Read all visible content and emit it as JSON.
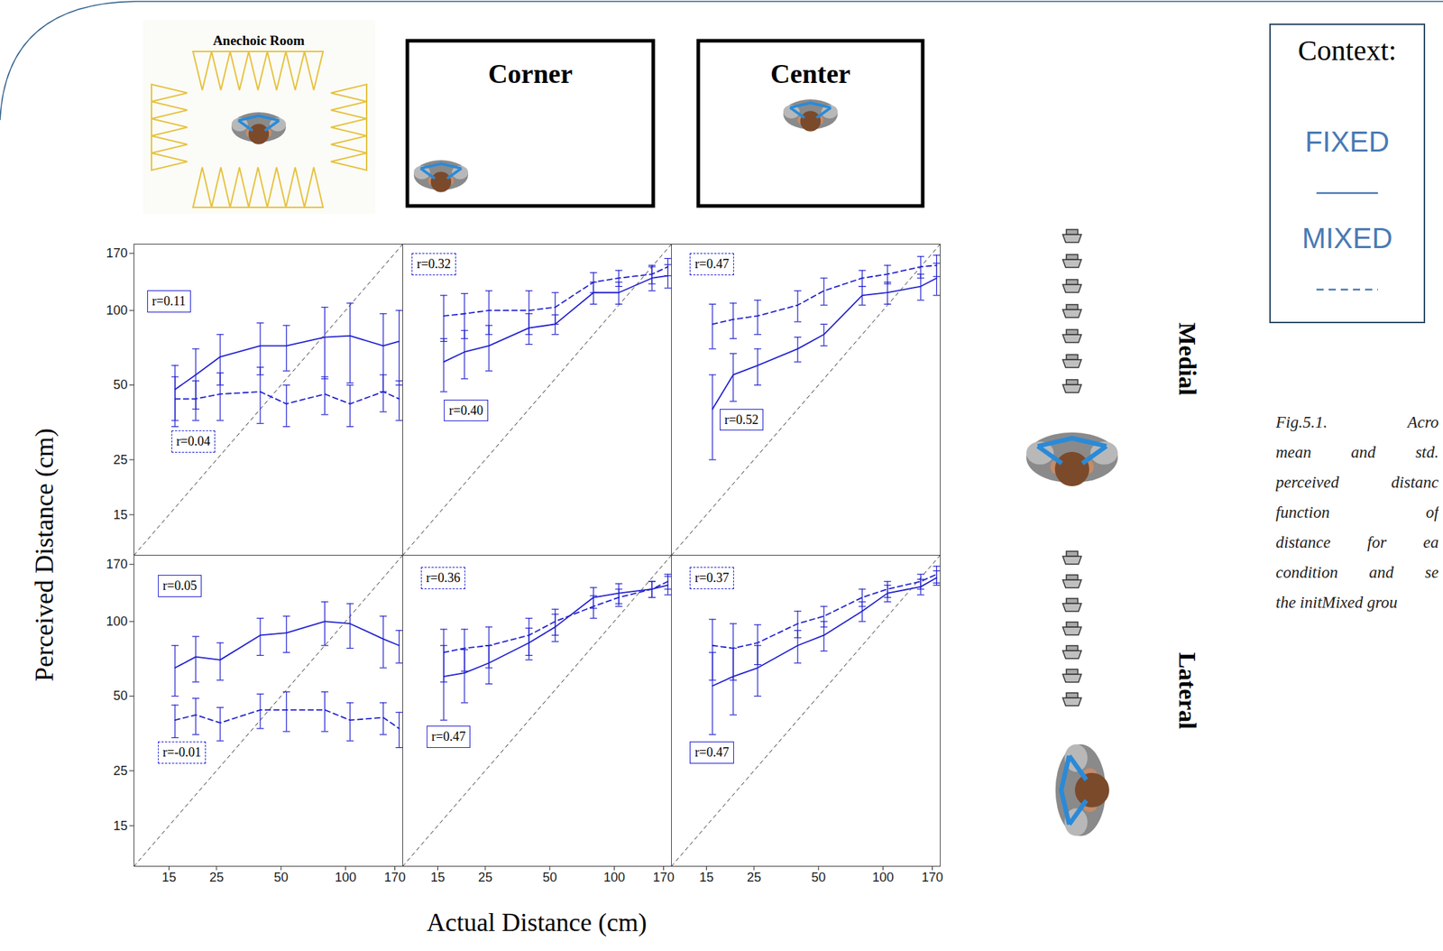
{
  "figure": {
    "x_label": "Actual Distance (cm)",
    "y_label": "Perceived Distance (cm)",
    "columns": [
      "Anechoic Room",
      "Corner",
      "Center"
    ],
    "rows": [
      "Medial",
      "Lateral"
    ],
    "legend_title": "Context:",
    "legend": "right",
    "caption": [
      "Fig.5.1. Acro",
      "mean and std.",
      "perceived distanc",
      "function of",
      "distance for ea",
      "condition and se",
      "the initMixed grou"
    ]
  },
  "chart_data": [
    {
      "type": "line",
      "column": "Anechoic Room",
      "row": "Medial",
      "log": true,
      "tick_labels": "y",
      "xlim": [
        10.3,
        185
      ],
      "ylim": [
        10.3,
        185
      ],
      "xticks": [
        15,
        25,
        50,
        100,
        170
      ],
      "yticks": [
        15,
        25,
        50,
        100,
        170
      ],
      "x": [
        16,
        20,
        26,
        40,
        53,
        80,
        105,
        150,
        178
      ],
      "series": [
        {
          "name": "FIXED",
          "color": "#2020d0",
          "line_style": "solid",
          "annotation": "r=0.11",
          "values": [
            48,
            55,
            65,
            72,
            72,
            78,
            79,
            72,
            75
          ],
          "error": [
            12,
            15,
            15,
            17,
            15,
            25,
            28,
            25,
            25
          ]
        },
        {
          "name": "MIXED",
          "color": "#2020d0",
          "line_style": "dashed",
          "annotation": "r=0.04",
          "values": [
            44,
            44,
            46,
            47,
            42,
            46,
            42,
            47,
            44
          ],
          "error": [
            10,
            8,
            10,
            12,
            8,
            8,
            8,
            8,
            8
          ]
        }
      ]
    },
    {
      "type": "line",
      "column": "Corner",
      "row": "Medial",
      "log": true,
      "tick_labels": false,
      "xlim": [
        10.3,
        185
      ],
      "ylim": [
        10.3,
        185
      ],
      "xticks": [
        15,
        25,
        50,
        100,
        170
      ],
      "yticks": [
        15,
        25,
        50,
        100,
        170
      ],
      "x": [
        16,
        20,
        26,
        40,
        53,
        80,
        105,
        150,
        178
      ],
      "series": [
        {
          "name": "FIXED",
          "color": "#2020d0",
          "line_style": "solid",
          "annotation": "r=0.40",
          "values": [
            62,
            68,
            72,
            85,
            88,
            118,
            118,
            135,
            138
          ],
          "error": [
            15,
            15,
            15,
            12,
            8,
            12,
            12,
            15,
            15
          ]
        },
        {
          "name": "MIXED",
          "color": "#2020d0",
          "line_style": "dashed",
          "annotation": "r=0.32",
          "values": [
            95,
            97,
            100,
            100,
            103,
            130,
            135,
            140,
            150
          ],
          "error": [
            20,
            20,
            20,
            20,
            15,
            12,
            10,
            12,
            12
          ]
        }
      ]
    },
    {
      "type": "line",
      "column": "Center",
      "row": "Medial",
      "log": true,
      "tick_labels": false,
      "xlim": [
        10.3,
        185
      ],
      "ylim": [
        10.3,
        185
      ],
      "xticks": [
        15,
        25,
        50,
        100,
        170
      ],
      "yticks": [
        15,
        25,
        50,
        100,
        170
      ],
      "x": [
        16,
        20,
        26,
        40,
        53,
        80,
        105,
        150,
        178
      ],
      "series": [
        {
          "name": "FIXED",
          "color": "#2020d0",
          "line_style": "solid",
          "annotation": "r=0.52",
          "values": [
            40,
            55,
            60,
            70,
            80,
            115,
            118,
            125,
            135
          ],
          "error": [
            15,
            12,
            10,
            8,
            8,
            10,
            12,
            15,
            20
          ]
        },
        {
          "name": "MIXED",
          "color": "#2020d0",
          "line_style": "dashed",
          "annotation": "r=0.47",
          "values": [
            88,
            92,
            95,
            105,
            120,
            135,
            140,
            150,
            152
          ],
          "error": [
            18,
            15,
            15,
            15,
            15,
            10,
            12,
            15,
            15
          ]
        }
      ]
    },
    {
      "type": "line",
      "column": "Anechoic Room",
      "row": "Lateral",
      "log": true,
      "xlim": [
        10.3,
        185
      ],
      "ylim": [
        10.3,
        185
      ],
      "xticks": [
        15,
        25,
        50,
        100,
        170
      ],
      "yticks": [
        15,
        25,
        50,
        100,
        170
      ],
      "x": [
        16,
        20,
        26,
        40,
        53,
        80,
        105,
        150,
        178
      ],
      "series": [
        {
          "name": "FIXED",
          "color": "#2020d0",
          "line_style": "solid",
          "annotation": "r=0.05",
          "values": [
            65,
            72,
            70,
            88,
            90,
            100,
            98,
            85,
            80
          ],
          "error": [
            15,
            15,
            12,
            15,
            15,
            20,
            20,
            20,
            12
          ]
        },
        {
          "name": "MIXED",
          "color": "#2020d0",
          "line_style": "dashed",
          "annotation": "r=-0.01",
          "values": [
            40,
            42,
            39,
            44,
            44,
            44,
            40,
            41,
            37
          ],
          "error": [
            6,
            7,
            6,
            7,
            8,
            8,
            7,
            6,
            6
          ]
        }
      ]
    },
    {
      "type": "line",
      "column": "Corner",
      "row": "Lateral",
      "log": true,
      "tick_labels": "x",
      "xlim": [
        10.3,
        185
      ],
      "ylim": [
        10.3,
        185
      ],
      "xticks": [
        15,
        25,
        50,
        100,
        170
      ],
      "yticks": [
        15,
        25,
        50,
        100,
        170
      ],
      "x": [
        16,
        20,
        26,
        40,
        53,
        80,
        105,
        150,
        178
      ],
      "series": [
        {
          "name": "FIXED",
          "color": "#2020d0",
          "line_style": "solid",
          "annotation": "r=0.47",
          "values": [
            60,
            62,
            68,
            82,
            95,
            125,
            130,
            135,
            140
          ],
          "error": [
            20,
            15,
            12,
            12,
            12,
            12,
            12,
            10,
            12
          ]
        },
        {
          "name": "MIXED",
          "color": "#2020d0",
          "line_style": "dashed",
          "annotation": "r=0.36",
          "values": [
            75,
            78,
            80,
            88,
            100,
            115,
            125,
            135,
            145
          ],
          "error": [
            18,
            15,
            15,
            15,
            12,
            12,
            10,
            10,
            10
          ]
        }
      ]
    },
    {
      "type": "line",
      "column": "Center",
      "row": "Lateral",
      "log": true,
      "tick_labels": "x",
      "xlim": [
        10.3,
        185
      ],
      "ylim": [
        10.3,
        185
      ],
      "xticks": [
        15,
        25,
        50,
        100,
        170
      ],
      "yticks": [
        15,
        25,
        50,
        100,
        170
      ],
      "x": [
        16,
        20,
        26,
        40,
        53,
        80,
        105,
        150,
        178
      ],
      "series": [
        {
          "name": "FIXED",
          "color": "#2020d0",
          "line_style": "solid",
          "annotation": "r=0.47",
          "values": [
            55,
            60,
            65,
            80,
            88,
            110,
            130,
            138,
            150
          ],
          "error": [
            20,
            18,
            15,
            12,
            12,
            10,
            10,
            10,
            10
          ]
        },
        {
          "name": "MIXED",
          "color": "#2020d0",
          "line_style": "dashed",
          "annotation": "r=0.37",
          "values": [
            80,
            78,
            82,
            98,
            105,
            125,
            135,
            145,
            155
          ],
          "error": [
            22,
            20,
            15,
            12,
            10,
            10,
            10,
            10,
            12
          ]
        }
      ]
    }
  ]
}
